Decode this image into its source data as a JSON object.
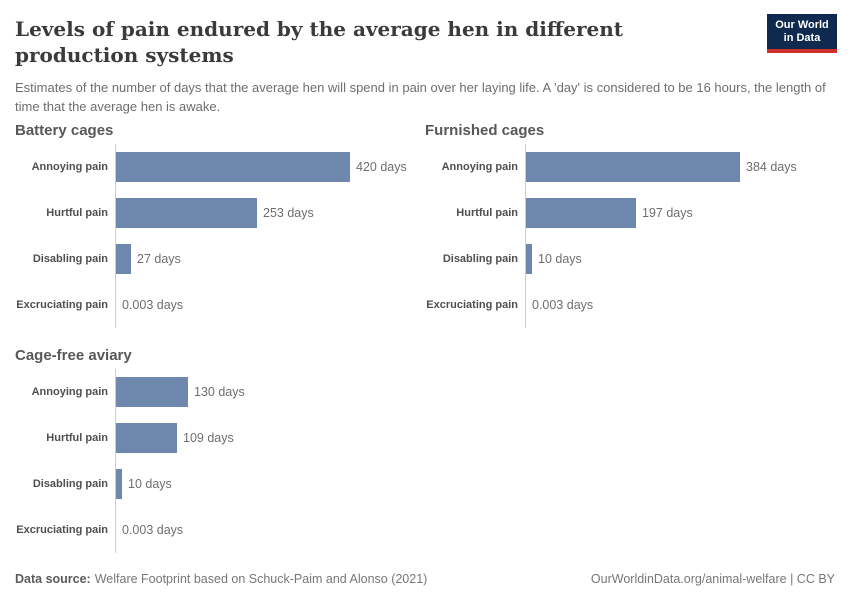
{
  "header": {
    "title": "Levels of pain endured by the average hen in different production systems",
    "subtitle": "Estimates of the number of days that the average hen will spend in pain over her laying life. A 'day' is considered to be 16 hours, the length of time that the average hen is awake.",
    "logo": {
      "line1": "Our World",
      "line2": "in Data",
      "bg_color": "#0f2a4e",
      "stripe_color": "#cf312a"
    }
  },
  "chart_data": {
    "type": "bar",
    "orientation": "horizontal",
    "unit": "days",
    "categories": [
      "Annoying pain",
      "Hurtful pain",
      "Disabling pain",
      "Excruciating pain"
    ],
    "facets": [
      {
        "title": "Battery cages",
        "values": [
          420,
          253,
          27,
          0.003
        ],
        "value_labels": [
          "420 days",
          "253 days",
          "27 days",
          "0.003 days"
        ]
      },
      {
        "title": "Furnished cages",
        "values": [
          384,
          197,
          10,
          0.003
        ],
        "value_labels": [
          "384 days",
          "197 days",
          "10 days",
          "0.003 days"
        ]
      },
      {
        "title": "Cage-free aviary",
        "values": [
          130,
          109,
          10,
          0.003
        ],
        "value_labels": [
          "130 days",
          "109 days",
          "10 days",
          "0.003 days"
        ]
      }
    ],
    "x_axis": {
      "min": 0,
      "max_bar_value": 420,
      "ticks_visible": false,
      "grid": false
    },
    "bar_color": "#6d87ad",
    "legend": "none"
  },
  "footer": {
    "source_label": "Data source:",
    "source_text": "Welfare Footprint based on Schuck-Paim and Alonso (2021)",
    "attribution": "OurWorldinData.org/animal-welfare | CC BY"
  }
}
